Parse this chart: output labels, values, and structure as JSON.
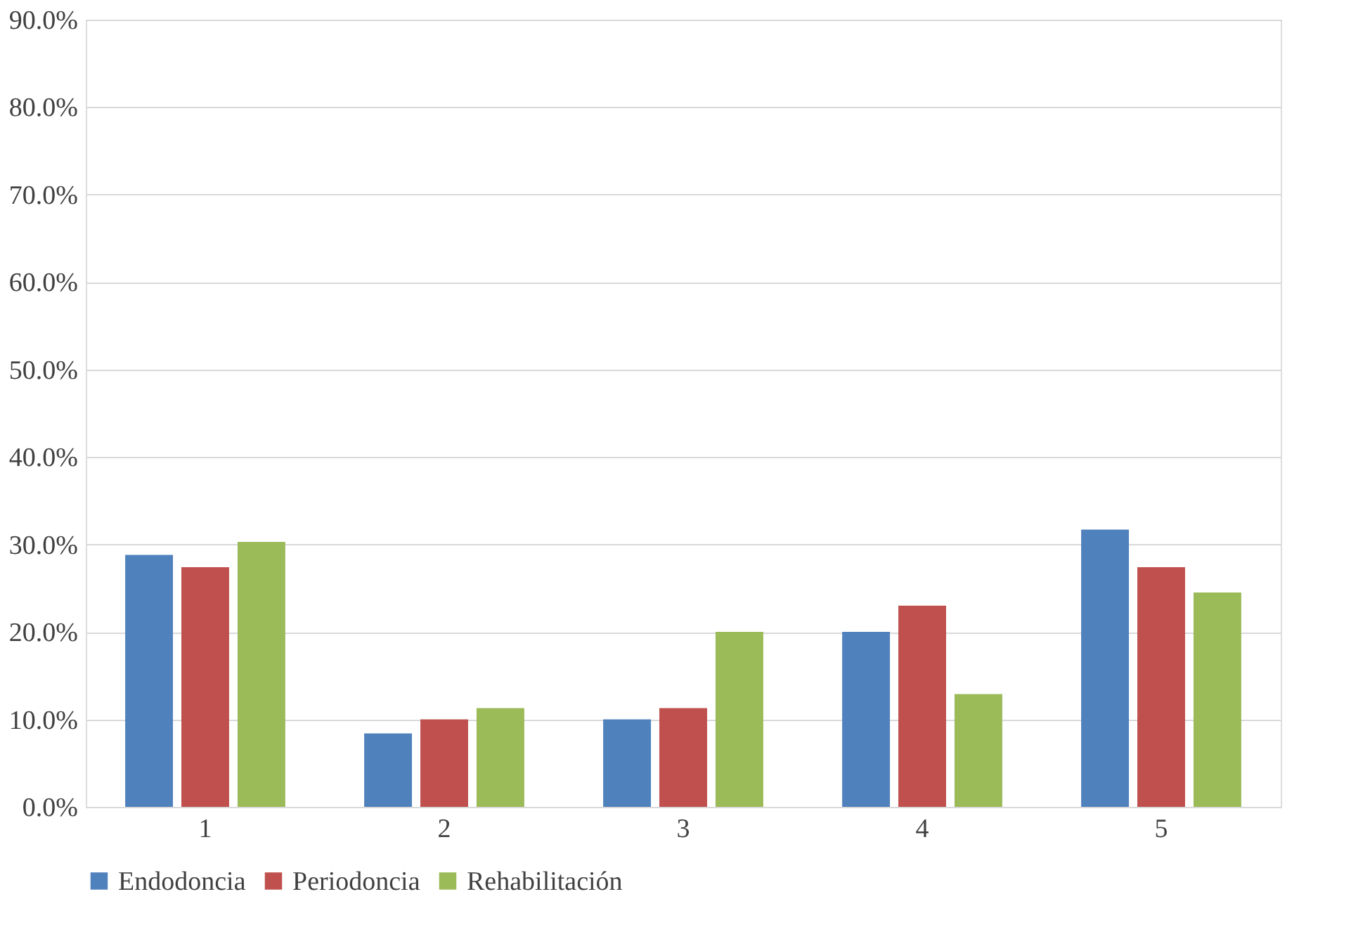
{
  "chart_data": {
    "type": "bar",
    "categories": [
      "1",
      "2",
      "3",
      "4",
      "5"
    ],
    "series": [
      {
        "name": "Endodoncia",
        "color": "#4f81bd",
        "values": [
          28.8,
          8.4,
          10.0,
          20.0,
          31.7
        ]
      },
      {
        "name": "Periodoncia",
        "color": "#c0504d",
        "values": [
          27.4,
          10.0,
          11.3,
          23.0,
          27.4
        ]
      },
      {
        "name": "Rehabilitación",
        "color": "#9bbb59",
        "values": [
          30.3,
          11.3,
          20.0,
          12.9,
          24.5
        ]
      }
    ],
    "ylim": [
      0,
      90
    ],
    "yticks": [
      {
        "value": 0,
        "label": "0.0%"
      },
      {
        "value": 10,
        "label": "10.0%"
      },
      {
        "value": 20,
        "label": "20.0%"
      },
      {
        "value": 30,
        "label": "30.0%"
      },
      {
        "value": 40,
        "label": "40.0%"
      },
      {
        "value": 50,
        "label": "50.0%"
      },
      {
        "value": 60,
        "label": "60.0%"
      },
      {
        "value": 70,
        "label": "70.0%"
      },
      {
        "value": 80,
        "label": "80.0%"
      },
      {
        "value": 90,
        "label": "90.0%"
      }
    ],
    "grid": "y",
    "legend": "bottom"
  }
}
